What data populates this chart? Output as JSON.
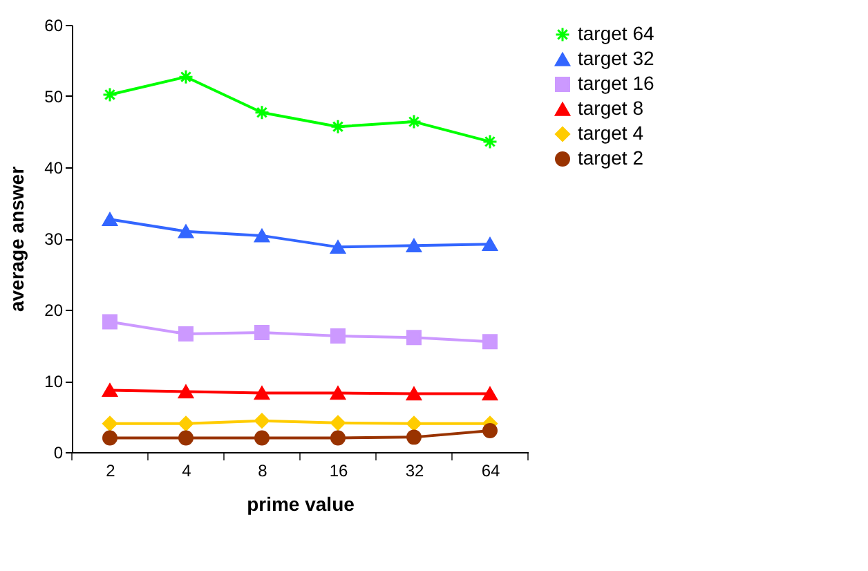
{
  "chart_data": {
    "type": "line",
    "xlabel": "prime value",
    "ylabel": "average answer",
    "categories": [
      "2",
      "4",
      "8",
      "16",
      "32",
      "64"
    ],
    "ylim": [
      0,
      60
    ],
    "yticks": [
      0,
      10,
      20,
      30,
      40,
      50,
      60
    ],
    "grid": false,
    "legend": "right",
    "line_style": "solid",
    "series": [
      {
        "name": "target 64",
        "color": "#00ff00",
        "marker": "cross",
        "values": [
          50.2,
          52.7,
          47.7,
          45.7,
          46.4,
          43.6
        ]
      },
      {
        "name": "target 32",
        "color": "#3366ff",
        "marker": "triangle",
        "values": [
          32.7,
          31.0,
          30.4,
          28.8,
          29.0,
          29.2
        ]
      },
      {
        "name": "target 16",
        "color": "#cc99ff",
        "marker": "square",
        "values": [
          18.3,
          16.6,
          16.8,
          16.3,
          16.1,
          15.5
        ]
      },
      {
        "name": "target 8",
        "color": "#ff0000",
        "marker": "triangle",
        "values": [
          8.7,
          8.5,
          8.3,
          8.3,
          8.2,
          8.2
        ]
      },
      {
        "name": "target 4",
        "color": "#ffcc00",
        "marker": "diamond",
        "values": [
          4.0,
          4.0,
          4.4,
          4.1,
          4.0,
          4.0
        ]
      },
      {
        "name": "target 2",
        "color": "#993300",
        "marker": "circle",
        "values": [
          2.0,
          2.0,
          2.0,
          2.0,
          2.1,
          3.0
        ]
      }
    ]
  }
}
